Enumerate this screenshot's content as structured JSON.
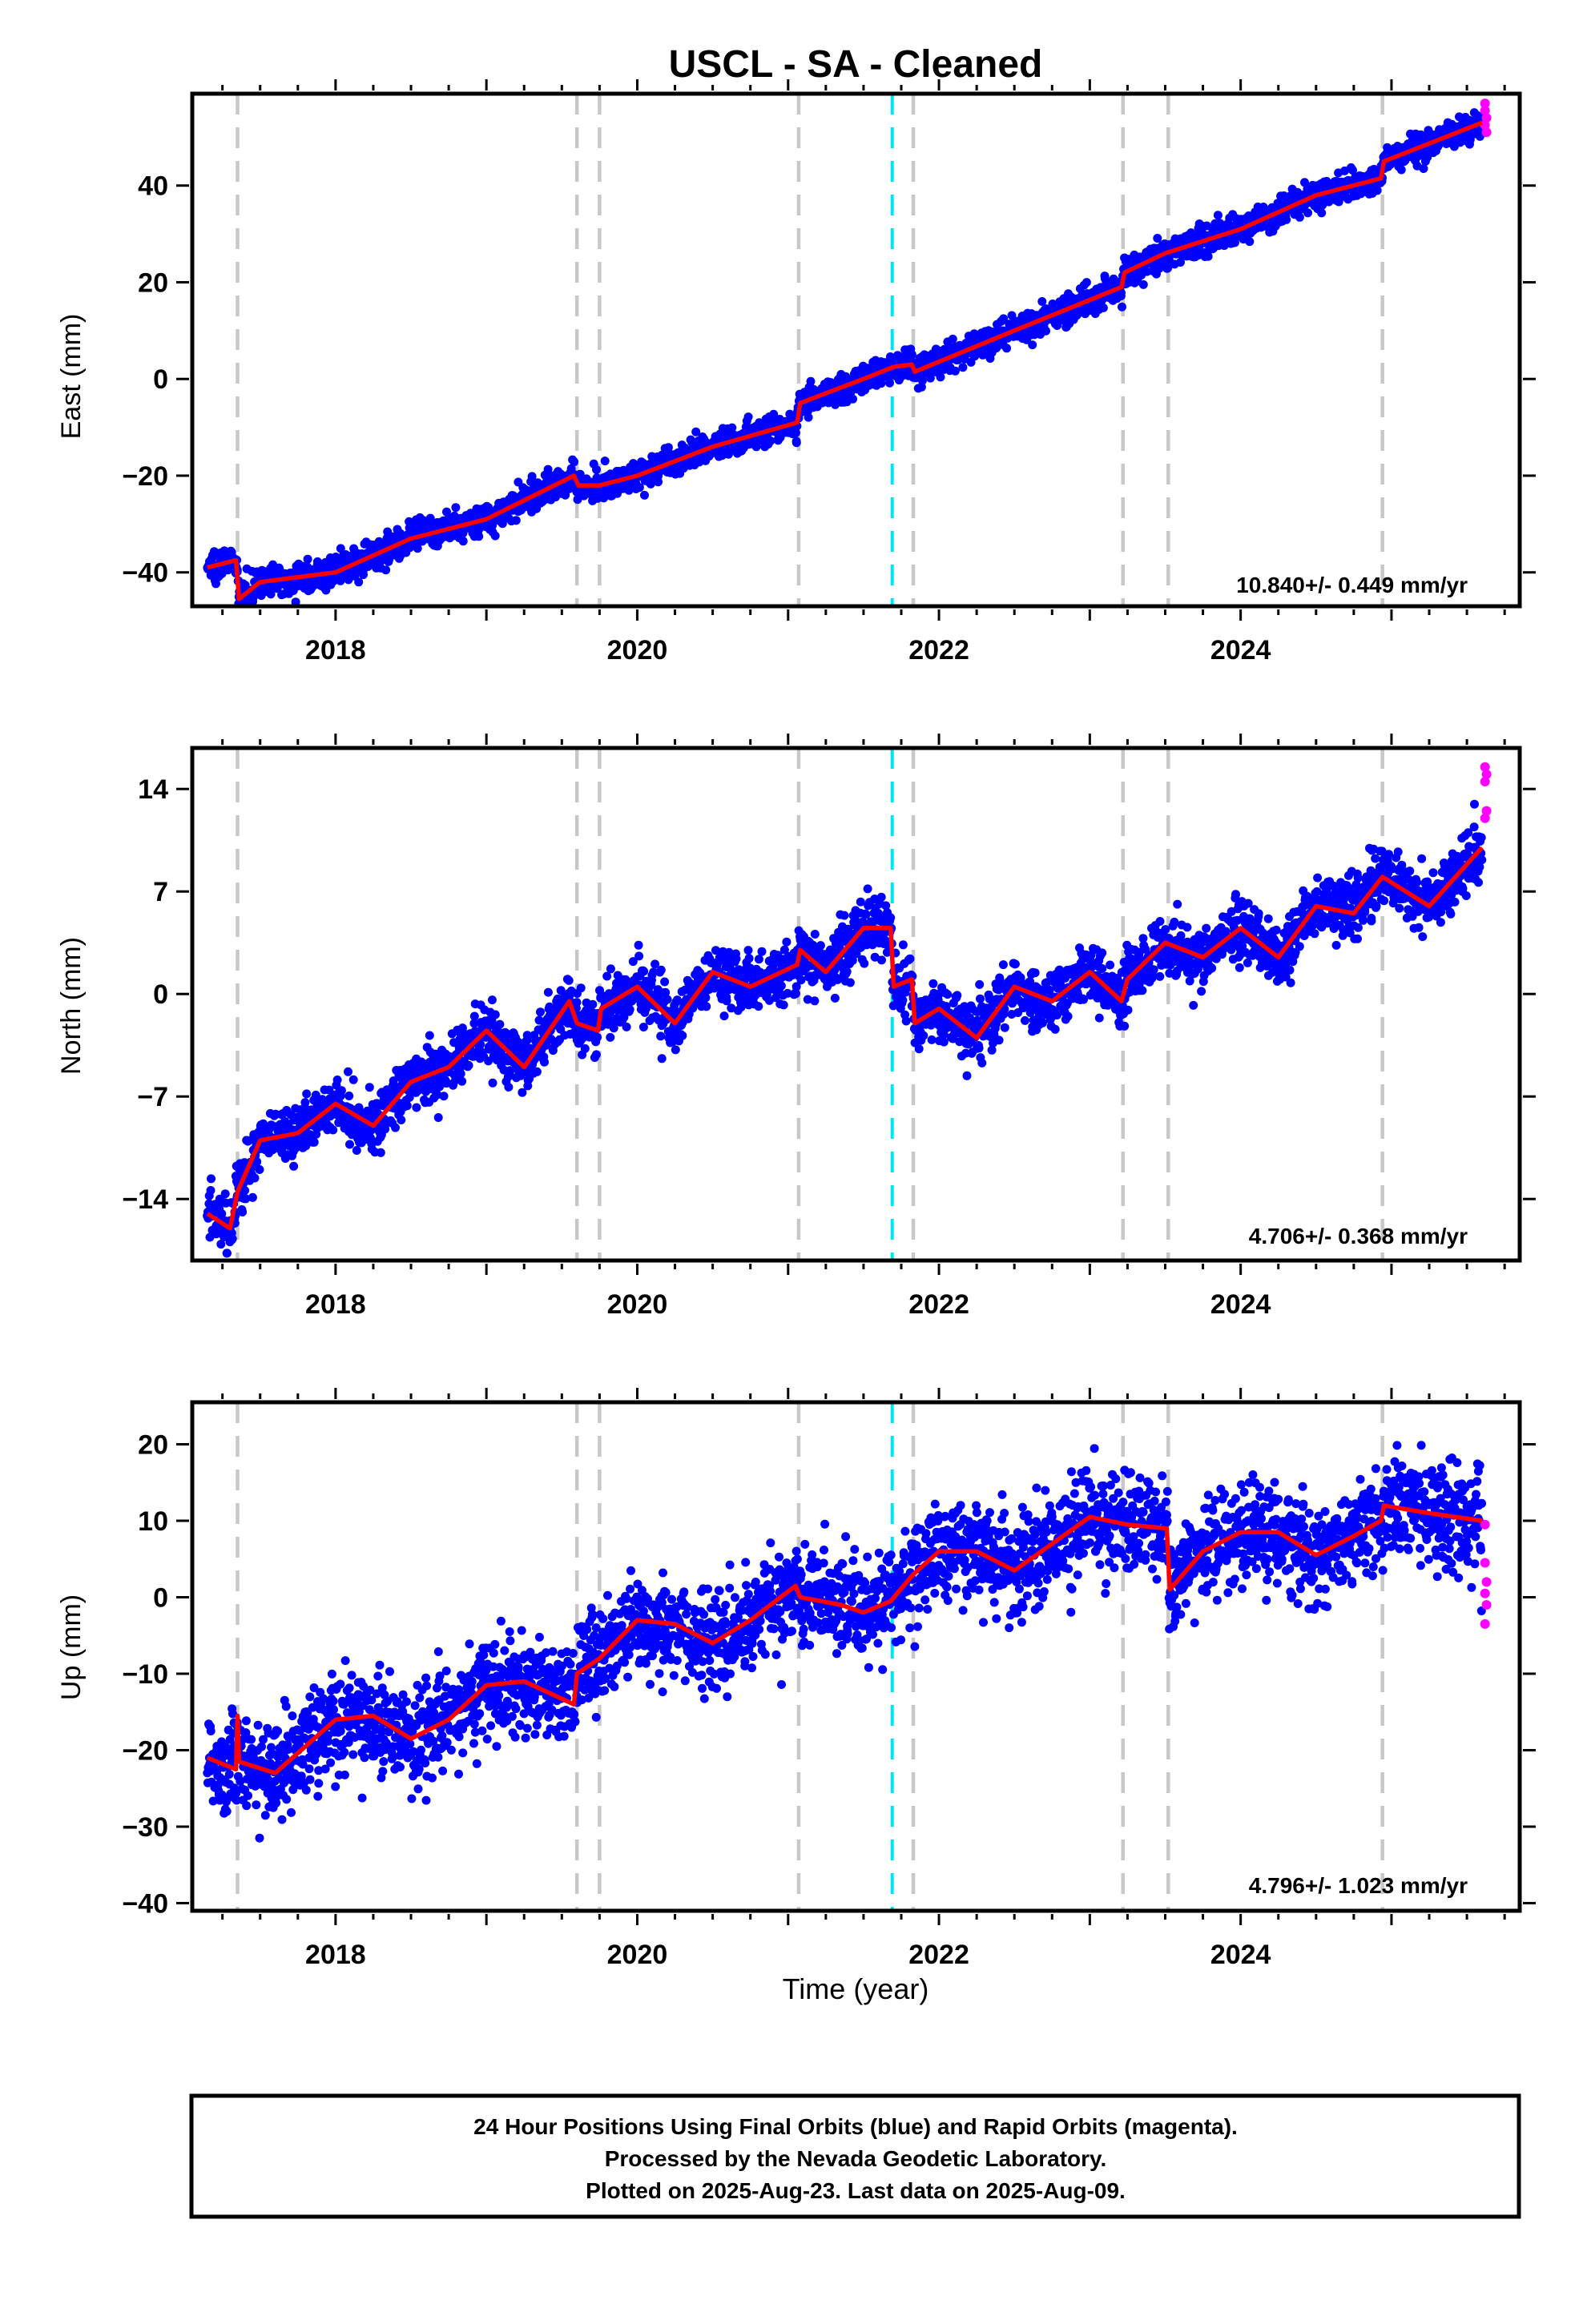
{
  "title": "USCL  - SA - Cleaned",
  "xlabel": "Time (year)",
  "footer": {
    "line1": "24 Hour Positions Using Final Orbits (blue) and Rapid Orbits (magenta).",
    "line2": "Processed by the Nevada Geodetic Laboratory.",
    "line3": "Plotted on 2025-Aug-23. Last data on 2025-Aug-09."
  },
  "colors": {
    "final_orbits": "#0000ff",
    "rapid_orbits": "#ff00ff",
    "model": "#ff0000",
    "equipment_change": "#c8c8c8",
    "earthquake": "#00e5ee"
  },
  "chart_data": [
    {
      "type": "scatter",
      "ylabel": "East (mm)",
      "rate_label": "10.840+/- 0.449 mm/yr",
      "xlim": [
        2017.05,
        2025.85
      ],
      "ylim": [
        -47,
        59
      ],
      "xticks": [
        "2018",
        "2020",
        "2022",
        "2024"
      ],
      "yticks": [
        "40",
        "20",
        "0",
        "−20",
        "−40"
      ],
      "ytick_values": [
        40,
        20,
        0,
        -20,
        -40
      ],
      "steps": [
        [
          2017.35,
          -6
        ],
        [
          2019.6,
          2
        ],
        [
          2021.07,
          4
        ],
        [
          2021.83,
          -2
        ],
        [
          2023.22,
          1
        ],
        [
          2024.94,
          2
        ]
      ],
      "model": [
        [
          2017.15,
          -39
        ],
        [
          2017.34,
          -37.5
        ],
        [
          2017.36,
          -45.5
        ],
        [
          2017.5,
          -42
        ],
        [
          2018.0,
          -40
        ],
        [
          2018.5,
          -33
        ],
        [
          2019.0,
          -29
        ],
        [
          2019.58,
          -20
        ],
        [
          2019.61,
          -22
        ],
        [
          2019.75,
          -22
        ],
        [
          2020.0,
          -20
        ],
        [
          2020.5,
          -14
        ],
        [
          2021.06,
          -9
        ],
        [
          2021.08,
          -5
        ],
        [
          2021.5,
          0
        ],
        [
          2021.7,
          2.5
        ],
        [
          2021.82,
          3
        ],
        [
          2021.84,
          1.5
        ],
        [
          2022.5,
          10
        ],
        [
          2023.21,
          19
        ],
        [
          2023.23,
          22
        ],
        [
          2023.5,
          26
        ],
        [
          2024.0,
          31
        ],
        [
          2024.5,
          38
        ],
        [
          2024.93,
          41.5
        ],
        [
          2024.95,
          45
        ],
        [
          2025.6,
          53
        ]
      ],
      "noise": 1.5,
      "rapid": [
        [
          2025.62,
          57
        ],
        [
          2025.62,
          55.5
        ],
        [
          2025.63,
          54
        ],
        [
          2025.62,
          52.5
        ],
        [
          2025.63,
          51
        ]
      ],
      "breaks": [
        {
          "x": 2017.35,
          "kind": "equipment"
        },
        {
          "x": 2019.6,
          "kind": "equipment"
        },
        {
          "x": 2019.75,
          "kind": "equipment"
        },
        {
          "x": 2021.07,
          "kind": "equipment"
        },
        {
          "x": 2021.69,
          "kind": "earthquake"
        },
        {
          "x": 2021.83,
          "kind": "equipment"
        },
        {
          "x": 2023.22,
          "kind": "equipment"
        },
        {
          "x": 2023.52,
          "kind": "equipment"
        },
        {
          "x": 2024.94,
          "kind": "equipment"
        }
      ]
    },
    {
      "type": "scatter",
      "ylabel": "North (mm)",
      "rate_label": "4.706+/- 0.368 mm/yr",
      "xlim": [
        2017.05,
        2025.85
      ],
      "ylim": [
        -18.2,
        16.8
      ],
      "xticks": [
        "2018",
        "2020",
        "2022",
        "2024"
      ],
      "yticks": [
        "14",
        "7",
        "0",
        "−7",
        "−14"
      ],
      "ytick_values": [
        14,
        7,
        0,
        -7,
        -14
      ],
      "model": [
        [
          2017.15,
          -15
        ],
        [
          2017.3,
          -16
        ],
        [
          2017.35,
          -13.5
        ],
        [
          2017.5,
          -10
        ],
        [
          2017.75,
          -9.5
        ],
        [
          2018.0,
          -7.5
        ],
        [
          2018.25,
          -9
        ],
        [
          2018.5,
          -6
        ],
        [
          2018.75,
          -5
        ],
        [
          2019.0,
          -2.5
        ],
        [
          2019.25,
          -5
        ],
        [
          2019.55,
          -0.5
        ],
        [
          2019.6,
          -2
        ],
        [
          2019.74,
          -2.5
        ],
        [
          2019.76,
          -1
        ],
        [
          2020.0,
          0.5
        ],
        [
          2020.25,
          -2
        ],
        [
          2020.5,
          1.5
        ],
        [
          2020.75,
          0.5
        ],
        [
          2021.06,
          2
        ],
        [
          2021.08,
          3
        ],
        [
          2021.25,
          1.5
        ],
        [
          2021.5,
          4.5
        ],
        [
          2021.68,
          4.5
        ],
        [
          2021.7,
          0.5
        ],
        [
          2021.82,
          1
        ],
        [
          2021.84,
          -2
        ],
        [
          2022.0,
          -1
        ],
        [
          2022.25,
          -3
        ],
        [
          2022.5,
          0.5
        ],
        [
          2022.75,
          -0.5
        ],
        [
          2023.0,
          1.5
        ],
        [
          2023.21,
          -0.5
        ],
        [
          2023.25,
          1
        ],
        [
          2023.5,
          3.5
        ],
        [
          2023.75,
          2.5
        ],
        [
          2024.0,
          4.5
        ],
        [
          2024.25,
          2.5
        ],
        [
          2024.5,
          6
        ],
        [
          2024.75,
          5.5
        ],
        [
          2024.94,
          8
        ],
        [
          2025.25,
          6
        ],
        [
          2025.6,
          10
        ]
      ],
      "noise": 1.0,
      "rapid": [
        [
          2025.62,
          15.5
        ],
        [
          2025.63,
          15
        ],
        [
          2025.62,
          14.5
        ],
        [
          2025.63,
          12.5
        ],
        [
          2025.62,
          12
        ]
      ],
      "breaks": [
        {
          "x": 2017.35,
          "kind": "equipment"
        },
        {
          "x": 2019.6,
          "kind": "equipment"
        },
        {
          "x": 2019.75,
          "kind": "equipment"
        },
        {
          "x": 2021.07,
          "kind": "equipment"
        },
        {
          "x": 2021.69,
          "kind": "earthquake"
        },
        {
          "x": 2021.83,
          "kind": "equipment"
        },
        {
          "x": 2023.22,
          "kind": "equipment"
        },
        {
          "x": 2023.52,
          "kind": "equipment"
        },
        {
          "x": 2024.94,
          "kind": "equipment"
        }
      ]
    },
    {
      "type": "scatter",
      "ylabel": "Up (mm)",
      "rate_label": "4.796+/- 1.023 mm/yr",
      "xlim": [
        2017.05,
        2025.85
      ],
      "ylim": [
        -41,
        25.5
      ],
      "xticks": [
        "2018",
        "2020",
        "2022",
        "2024"
      ],
      "yticks": [
        "20",
        "10",
        "0",
        "−10",
        "−20",
        "−30",
        "−40"
      ],
      "ytick_values": [
        20,
        10,
        0,
        -10,
        -20,
        -30,
        -40
      ],
      "model": [
        [
          2017.15,
          -21
        ],
        [
          2017.34,
          -22.5
        ],
        [
          2017.35,
          -15.5
        ],
        [
          2017.36,
          -21.5
        ],
        [
          2017.6,
          -23
        ],
        [
          2018.0,
          -16
        ],
        [
          2018.25,
          -15.5
        ],
        [
          2018.5,
          -18.5
        ],
        [
          2018.75,
          -16
        ],
        [
          2019.0,
          -11.5
        ],
        [
          2019.25,
          -11
        ],
        [
          2019.58,
          -14
        ],
        [
          2019.6,
          -10
        ],
        [
          2019.75,
          -8
        ],
        [
          2020.0,
          -3
        ],
        [
          2020.25,
          -3.5
        ],
        [
          2020.5,
          -6
        ],
        [
          2020.75,
          -3
        ],
        [
          2021.05,
          1.5
        ],
        [
          2021.08,
          0
        ],
        [
          2021.35,
          -1
        ],
        [
          2021.5,
          -2
        ],
        [
          2021.68,
          -0.5
        ],
        [
          2021.83,
          3
        ],
        [
          2022.0,
          6
        ],
        [
          2022.25,
          6
        ],
        [
          2022.5,
          3.5
        ],
        [
          2022.75,
          7
        ],
        [
          2023.0,
          10.5
        ],
        [
          2023.25,
          9.5
        ],
        [
          2023.51,
          9
        ],
        [
          2023.53,
          1
        ],
        [
          2023.75,
          6
        ],
        [
          2024.0,
          8.5
        ],
        [
          2024.25,
          8.5
        ],
        [
          2024.5,
          5.5
        ],
        [
          2024.75,
          8
        ],
        [
          2024.93,
          10
        ],
        [
          2024.95,
          12
        ],
        [
          2025.25,
          11
        ],
        [
          2025.6,
          10
        ]
      ],
      "noise": 3.2,
      "rapid": [
        [
          2025.62,
          9.5
        ],
        [
          2025.62,
          4.5
        ],
        [
          2025.63,
          2
        ],
        [
          2025.62,
          0.5
        ],
        [
          2025.63,
          -1
        ],
        [
          2025.62,
          -3.5
        ]
      ],
      "breaks": [
        {
          "x": 2017.35,
          "kind": "equipment"
        },
        {
          "x": 2019.6,
          "kind": "equipment"
        },
        {
          "x": 2019.75,
          "kind": "equipment"
        },
        {
          "x": 2021.07,
          "kind": "equipment"
        },
        {
          "x": 2021.69,
          "kind": "earthquake"
        },
        {
          "x": 2021.83,
          "kind": "equipment"
        },
        {
          "x": 2023.22,
          "kind": "equipment"
        },
        {
          "x": 2023.52,
          "kind": "equipment"
        },
        {
          "x": 2024.94,
          "kind": "equipment"
        }
      ]
    }
  ]
}
